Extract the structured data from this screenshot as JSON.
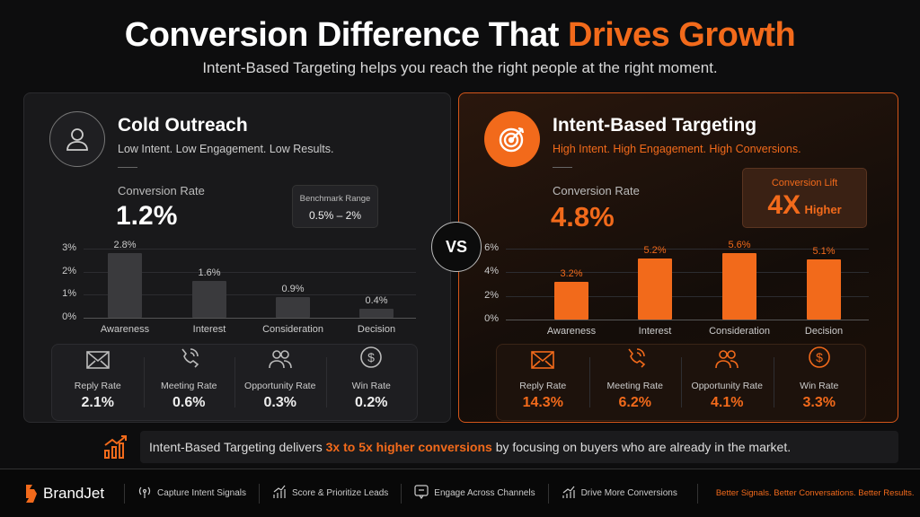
{
  "header": {
    "title_plain": "Conversion Difference That ",
    "title_highlight": "Drives Growth",
    "subtitle": "Intent-Based Targeting helps you reach the right people at the right moment."
  },
  "colors": {
    "accent": "#f26a1b",
    "cold_bar": "#3a3a3d",
    "panel_dark": "#19191b"
  },
  "left": {
    "icon": "user-icon",
    "title": "Cold Outreach",
    "subtitle": "Low Intent. Low Engagement. Low Results.",
    "cr_label": "Conversion Rate",
    "cr_value": "1.2%",
    "benchmark_label": "Benchmark Range",
    "benchmark_value": "0.5% – 2%",
    "metrics": [
      {
        "icon": "mail-icon",
        "label": "Reply Rate",
        "value": "2.1%"
      },
      {
        "icon": "phone-icon",
        "label": "Meeting Rate",
        "value": "0.6%"
      },
      {
        "icon": "users-icon",
        "label": "Opportunity Rate",
        "value": "0.3%"
      },
      {
        "icon": "dollar-icon",
        "label": "Win Rate",
        "value": "0.2%"
      }
    ]
  },
  "right": {
    "icon": "target-icon",
    "title": "Intent-Based Targeting",
    "subtitle": "High Intent. High Engagement. High Conversions.",
    "cr_label": "Conversion Rate",
    "cr_value": "4.8%",
    "lift_label": "Conversion Lift",
    "lift_value": "4X",
    "lift_suffix": "Higher",
    "metrics": [
      {
        "icon": "mail-icon",
        "label": "Reply Rate",
        "value": "14.3%"
      },
      {
        "icon": "phone-icon",
        "label": "Meeting Rate",
        "value": "6.2%"
      },
      {
        "icon": "users-icon",
        "label": "Opportunity Rate",
        "value": "4.1%"
      },
      {
        "icon": "dollar-icon",
        "label": "Win Rate",
        "value": "3.3%"
      }
    ]
  },
  "vs": "VS",
  "chart_data": [
    {
      "type": "bar",
      "categories": [
        "Awareness",
        "Interest",
        "Consideration",
        "Decision"
      ],
      "values": [
        2.8,
        1.6,
        0.9,
        0.4
      ],
      "data_labels": [
        "2.8%",
        "1.6%",
        "0.9%",
        "0.4%"
      ],
      "yticks": [
        "0%",
        "1%",
        "2%",
        "3%"
      ],
      "ylim": [
        0,
        3
      ],
      "grid": true,
      "color": "#3a3a3d"
    },
    {
      "type": "bar",
      "categories": [
        "Awareness",
        "Interest",
        "Consideration",
        "Decision"
      ],
      "values": [
        3.2,
        5.2,
        5.6,
        5.1
      ],
      "data_labels": [
        "3.2%",
        "5.2%",
        "5.6%",
        "5.1%"
      ],
      "yticks": [
        "0%",
        "2%",
        "4%",
        "6%"
      ],
      "ylim": [
        0,
        6
      ],
      "grid": true,
      "color": "#f26a1b"
    }
  ],
  "banner": {
    "icon": "growth-chart-icon",
    "pre": "Intent-Based Targeting delivers ",
    "highlight": "3x to 5x higher conversions",
    "post": " by focusing on buyers who are already in the market."
  },
  "footer": {
    "brand": "BrandJet",
    "items": [
      {
        "icon": "signal-icon",
        "label": "Capture Intent Signals"
      },
      {
        "icon": "bar-growth-icon",
        "label": "Score & Prioritize Leads"
      },
      {
        "icon": "chat-icon",
        "label": "Engage Across Channels"
      },
      {
        "icon": "trend-icon",
        "label": "Drive More Conversions"
      }
    ],
    "tagline": "Better Signals. Better Conversations. Better Results."
  }
}
